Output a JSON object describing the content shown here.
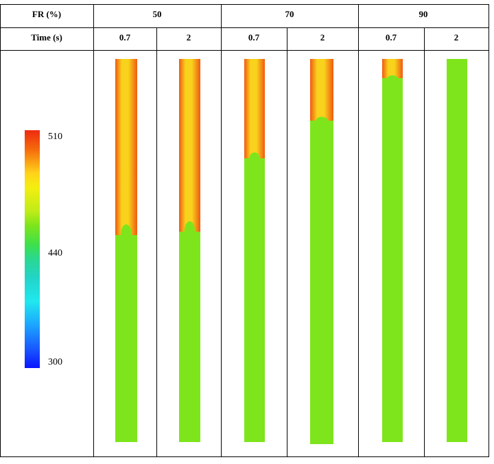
{
  "table": {
    "row1_label": "FR (%)",
    "row2_label": "Time (s)",
    "groups": [
      "50",
      "70",
      "90"
    ],
    "times": [
      "0.7",
      "2",
      "0.7",
      "2",
      "0.7",
      "2"
    ]
  },
  "legend": {
    "ticks": [
      "510",
      "440",
      "300"
    ],
    "colors": {
      "hot": "#ee2a10",
      "mid": "#ffd21a",
      "base": "#7ee51c",
      "cold": "#0a14ff"
    }
  },
  "interface_fractions": [
    0.46,
    0.45,
    0.26,
    0.16,
    0.05,
    0.0
  ],
  "colors": {
    "liquid": "#7ee51c",
    "hot": "#f05a12",
    "warm": "#f8d21c"
  }
}
